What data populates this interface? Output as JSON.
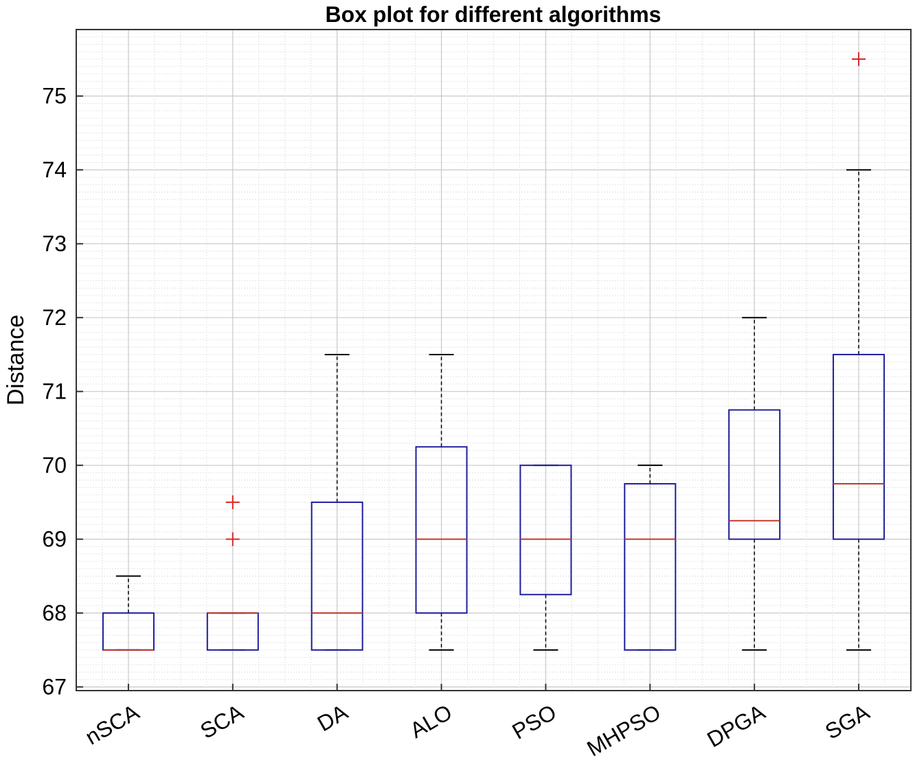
{
  "chart_data": {
    "type": "box",
    "title": "Box plot for different algorithms",
    "xlabel": "",
    "ylabel": "Distance",
    "ylim": [
      66.95,
      75.9
    ],
    "yticks": [
      67,
      68,
      69,
      70,
      71,
      72,
      73,
      74,
      75
    ],
    "grid": "on (major and minor)",
    "colors": {
      "box": "#1f1f9c",
      "median": "#c0392b",
      "whisker": "#000000",
      "outlier": "#d62728",
      "grid": "#d9d9d9"
    },
    "categories": [
      "nSCA",
      "SCA",
      "DA",
      "ALO",
      "PSO",
      "MHPSO",
      "DPGA",
      "SGA"
    ],
    "boxes": [
      {
        "name": "nSCA",
        "whisker_low": 67.5,
        "q1": 67.5,
        "median": 67.5,
        "q3": 68.0,
        "whisker_high": 68.5,
        "outliers": []
      },
      {
        "name": "SCA",
        "whisker_low": 67.5,
        "q1": 67.5,
        "median": 68.0,
        "q3": 68.0,
        "whisker_high": 68.0,
        "outliers": [
          69.0,
          69.5
        ]
      },
      {
        "name": "DA",
        "whisker_low": 67.5,
        "q1": 67.5,
        "median": 68.0,
        "q3": 69.5,
        "whisker_high": 71.5,
        "outliers": []
      },
      {
        "name": "ALO",
        "whisker_low": 67.5,
        "q1": 68.0,
        "median": 69.0,
        "q3": 70.25,
        "whisker_high": 71.5,
        "outliers": []
      },
      {
        "name": "PSO",
        "whisker_low": 67.5,
        "q1": 68.25,
        "median": 69.0,
        "q3": 70.0,
        "whisker_high": 70.0,
        "outliers": []
      },
      {
        "name": "MHPSO",
        "whisker_low": 67.5,
        "q1": 67.5,
        "median": 69.0,
        "q3": 69.75,
        "whisker_high": 70.0,
        "outliers": []
      },
      {
        "name": "DPGA",
        "whisker_low": 67.5,
        "q1": 69.0,
        "median": 69.25,
        "q3": 70.75,
        "whisker_high": 72.0,
        "outliers": []
      },
      {
        "name": "SGA",
        "whisker_low": 67.5,
        "q1": 69.0,
        "median": 69.75,
        "q3": 71.5,
        "whisker_high": 74.0,
        "outliers": [
          75.5
        ]
      }
    ]
  }
}
